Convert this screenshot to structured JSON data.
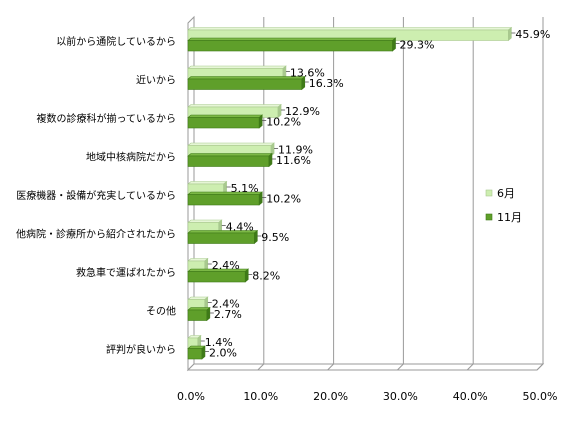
{
  "chart_data": {
    "type": "bar",
    "orientation": "horizontal",
    "categories": [
      "以前から通院しているから",
      "近いから",
      "複数の診療科が揃っているから",
      "地域中核病院だから",
      "医療機器・設備が充実しているから",
      "他病院・診療所から紹介されたから",
      "救急車で運ばれたから",
      "その他",
      "評判が良いから"
    ],
    "series": [
      {
        "name": "6月",
        "values": [
          45.9,
          13.6,
          12.9,
          11.9,
          5.1,
          4.4,
          2.4,
          2.4,
          1.4
        ],
        "labels": [
          "45.9%",
          "13.6%",
          "12.9%",
          "11.9%",
          "5.1%",
          "4.4%",
          "2.4%",
          "2.4%",
          "1.4%"
        ]
      },
      {
        "name": "11月",
        "values": [
          29.3,
          16.3,
          10.2,
          11.6,
          10.2,
          9.5,
          8.2,
          2.7,
          2.0
        ],
        "labels": [
          "29.3%",
          "16.3%",
          "10.2%",
          "11.6%",
          "10.2%",
          "9.5%",
          "8.2%",
          "2.7%",
          "2.0%"
        ]
      }
    ],
    "xlim": [
      0,
      50
    ],
    "xticks": [
      "0.0%",
      "10.0%",
      "20.0%",
      "30.0%",
      "40.0%",
      "50.0%"
    ],
    "grid": true,
    "legend_position": "right",
    "colors": {
      "series1": "#cdeeb0",
      "series2": "#5f9f2a",
      "grid": "#9a9a9a"
    }
  }
}
